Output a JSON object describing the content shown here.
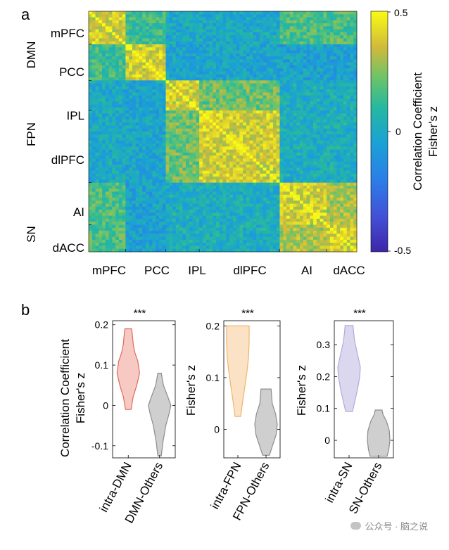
{
  "panel_labels": {
    "a": "a",
    "b": "b"
  },
  "colors": {
    "yellow": "#f9f71c",
    "blue": "#2f7fd2",
    "dark_blue": "#3e2ea8",
    "violin_red_fill": "#f7c9c3",
    "violin_red_edge": "#e0685c",
    "violin_orange_fill": "#fbe2c4",
    "violin_orange_edge": "#f3b26b",
    "violin_purple_fill": "#dbd7ef",
    "violin_purple_edge": "#b2aadb",
    "violin_gray_fill": "#cfcfcf",
    "violin_gray_edge": "#8d8d8d"
  },
  "watermark": {
    "text": "公众号 · 脑之说"
  },
  "chart_data": [
    {
      "type": "heatmap",
      "title": "",
      "row_networks": [
        "DMN",
        "FPN",
        "SN"
      ],
      "row_regions": [
        "mPFC",
        "PCC",
        "IPL",
        "dlPFC",
        "AI",
        "dACC"
      ],
      "column_regions": [
        "mPFC",
        "PCC",
        "IPL",
        "dlPFC",
        "AI",
        "dACC"
      ],
      "region_network": [
        "DMN",
        "DMN",
        "FPN",
        "FPN",
        "SN",
        "SN"
      ],
      "region_sizes": [
        11,
        12,
        10,
        24,
        14,
        9
      ],
      "pattern": "high correlation within each network block (DMN, FPN, SN), low between networks; DMN-mPFC also moderately correlated with SN",
      "colorbar": {
        "label_line1": "Correlation Coefficient",
        "label_line2": "Fisher's z",
        "ticks": [
          "0.5",
          "0",
          "-0.5"
        ],
        "vmin": -0.5,
        "vmax": 0.5
      }
    },
    {
      "type": "violin",
      "ylabel_line1": "Correlation Coefficient",
      "ylabel_line2": "Fisher's z",
      "ylim": [
        -0.13,
        0.21
      ],
      "yticks": [
        0.2,
        0.1,
        0,
        -0.1
      ],
      "ytick_labels": [
        "0.2",
        "0.1",
        "0",
        "-0.1"
      ],
      "significance": "***",
      "groups": [
        {
          "label": "intra-DMN",
          "color": "red",
          "min": -0.01,
          "max": 0.19,
          "profile": [
            [
              -0.01,
              0.25
            ],
            [
              0.02,
              0.42
            ],
            [
              0.05,
              0.75
            ],
            [
              0.08,
              1.0
            ],
            [
              0.11,
              0.85
            ],
            [
              0.13,
              0.6
            ],
            [
              0.15,
              0.45
            ],
            [
              0.17,
              0.38
            ],
            [
              0.19,
              0.3
            ]
          ]
        },
        {
          "label": "DMN-Others",
          "color": "gray",
          "min": -0.125,
          "max": 0.08,
          "profile": [
            [
              -0.125,
              0.15
            ],
            [
              -0.09,
              0.3
            ],
            [
              -0.05,
              0.55
            ],
            [
              -0.02,
              0.85
            ],
            [
              0.0,
              1.0
            ],
            [
              0.02,
              0.75
            ],
            [
              0.05,
              0.35
            ],
            [
              0.08,
              0.15
            ]
          ]
        }
      ]
    },
    {
      "type": "violin",
      "ylabel_line1": "Fisher's z",
      "ylim": [
        -0.055,
        0.21
      ],
      "yticks": [
        0.2,
        0.1,
        0
      ],
      "ytick_labels": [
        "0.2",
        "0.1",
        "0"
      ],
      "significance": "***",
      "groups": [
        {
          "label": "intra-FPN",
          "color": "orange",
          "min": 0.025,
          "max": 0.2,
          "profile": [
            [
              0.025,
              0.25
            ],
            [
              0.05,
              0.4
            ],
            [
              0.08,
              0.6
            ],
            [
              0.11,
              0.8
            ],
            [
              0.14,
              0.95
            ],
            [
              0.17,
              1.0
            ],
            [
              0.2,
              1.0
            ]
          ]
        },
        {
          "label": "FPN-Others",
          "color": "gray",
          "min": -0.05,
          "max": 0.078,
          "profile": [
            [
              -0.05,
              0.3
            ],
            [
              -0.03,
              0.6
            ],
            [
              -0.01,
              0.9
            ],
            [
              0.01,
              1.0
            ],
            [
              0.03,
              0.85
            ],
            [
              0.05,
              0.55
            ],
            [
              0.078,
              0.45
            ]
          ]
        }
      ]
    },
    {
      "type": "violin",
      "ylabel_line1": "Fisher's z",
      "ylim": [
        -0.055,
        0.375
      ],
      "yticks": [
        0.3,
        0.2,
        0.1,
        0
      ],
      "ytick_labels": [
        "0.3",
        "0.2",
        "0.1",
        "0"
      ],
      "significance": "***",
      "groups": [
        {
          "label": "intra-SN",
          "color": "purple",
          "min": 0.09,
          "max": 0.36,
          "profile": [
            [
              0.09,
              0.3
            ],
            [
              0.12,
              0.5
            ],
            [
              0.16,
              0.75
            ],
            [
              0.2,
              0.95
            ],
            [
              0.23,
              1.0
            ],
            [
              0.27,
              0.75
            ],
            [
              0.31,
              0.5
            ],
            [
              0.34,
              0.4
            ],
            [
              0.36,
              0.35
            ]
          ]
        },
        {
          "label": "SN-Others",
          "color": "gray",
          "min": -0.05,
          "max": 0.095,
          "profile": [
            [
              -0.05,
              0.75
            ],
            [
              -0.03,
              0.9
            ],
            [
              0.0,
              1.0
            ],
            [
              0.03,
              0.95
            ],
            [
              0.06,
              0.7
            ],
            [
              0.08,
              0.4
            ],
            [
              0.095,
              0.3
            ]
          ]
        }
      ]
    }
  ]
}
